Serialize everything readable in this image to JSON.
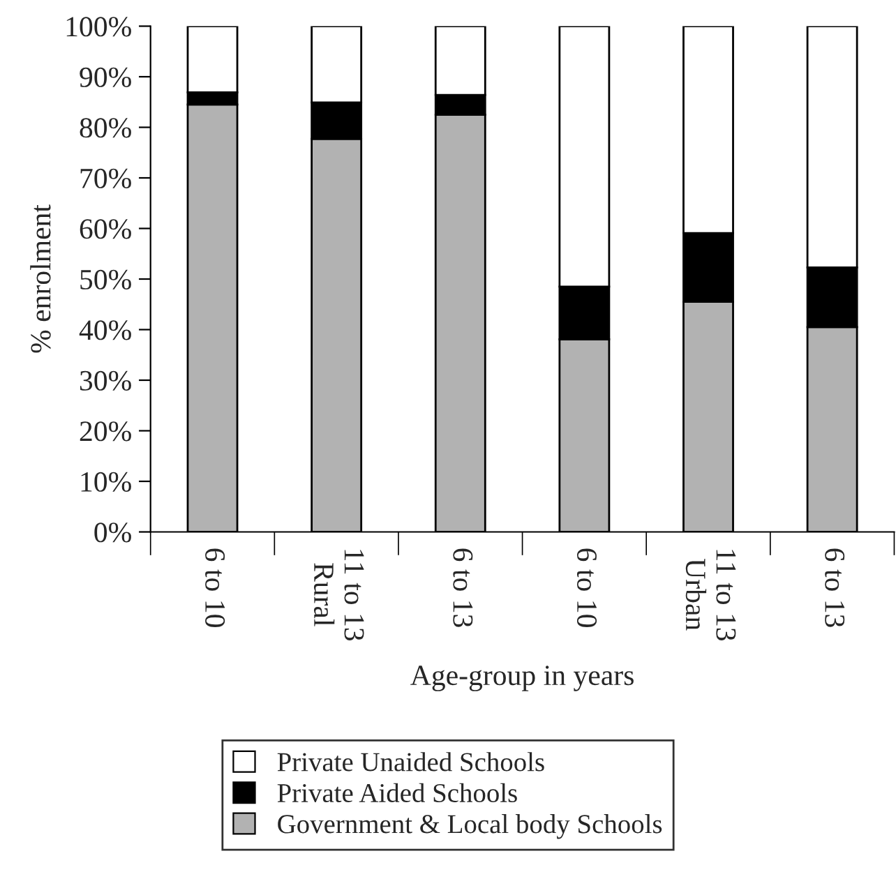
{
  "chart_data": {
    "type": "bar",
    "stacked": true,
    "xlabel": "Age-group in years",
    "ylabel": "% enrolment",
    "categories": [
      "6 to 10",
      "11 to 13\nRural",
      "6 to 13",
      "6 to 10",
      "11 to 13\nUrban",
      "6 to 13"
    ],
    "series": [
      {
        "name": "Government & Local body Schools",
        "color": "#b2b2b2",
        "values": [
          84.5,
          77.7,
          82.5,
          38.1,
          45.5,
          40.5
        ]
      },
      {
        "name": "Private Aided Schools",
        "color": "#000000",
        "values": [
          2.4,
          7.2,
          3.9,
          10.4,
          13.6,
          11.8
        ]
      },
      {
        "name": "Private Unaided Schools",
        "color": "#ffffff",
        "values": [
          13.1,
          15.1,
          13.6,
          51.5,
          40.9,
          47.7
        ]
      }
    ],
    "ylim": [
      0,
      100
    ],
    "yticks": [
      {
        "value": 0,
        "label": "0%"
      },
      {
        "value": 10,
        "label": "10%"
      },
      {
        "value": 20,
        "label": "20%"
      },
      {
        "value": 30,
        "label": "30%"
      },
      {
        "value": 40,
        "label": "40%"
      },
      {
        "value": 50,
        "label": "50%"
      },
      {
        "value": 60,
        "label": "60%"
      },
      {
        "value": 70,
        "label": "70%"
      },
      {
        "value": 80,
        "label": "80%"
      },
      {
        "value": 90,
        "label": "90%"
      },
      {
        "value": 100,
        "label": "100%"
      }
    ],
    "grid": false,
    "legend": "bottom"
  }
}
